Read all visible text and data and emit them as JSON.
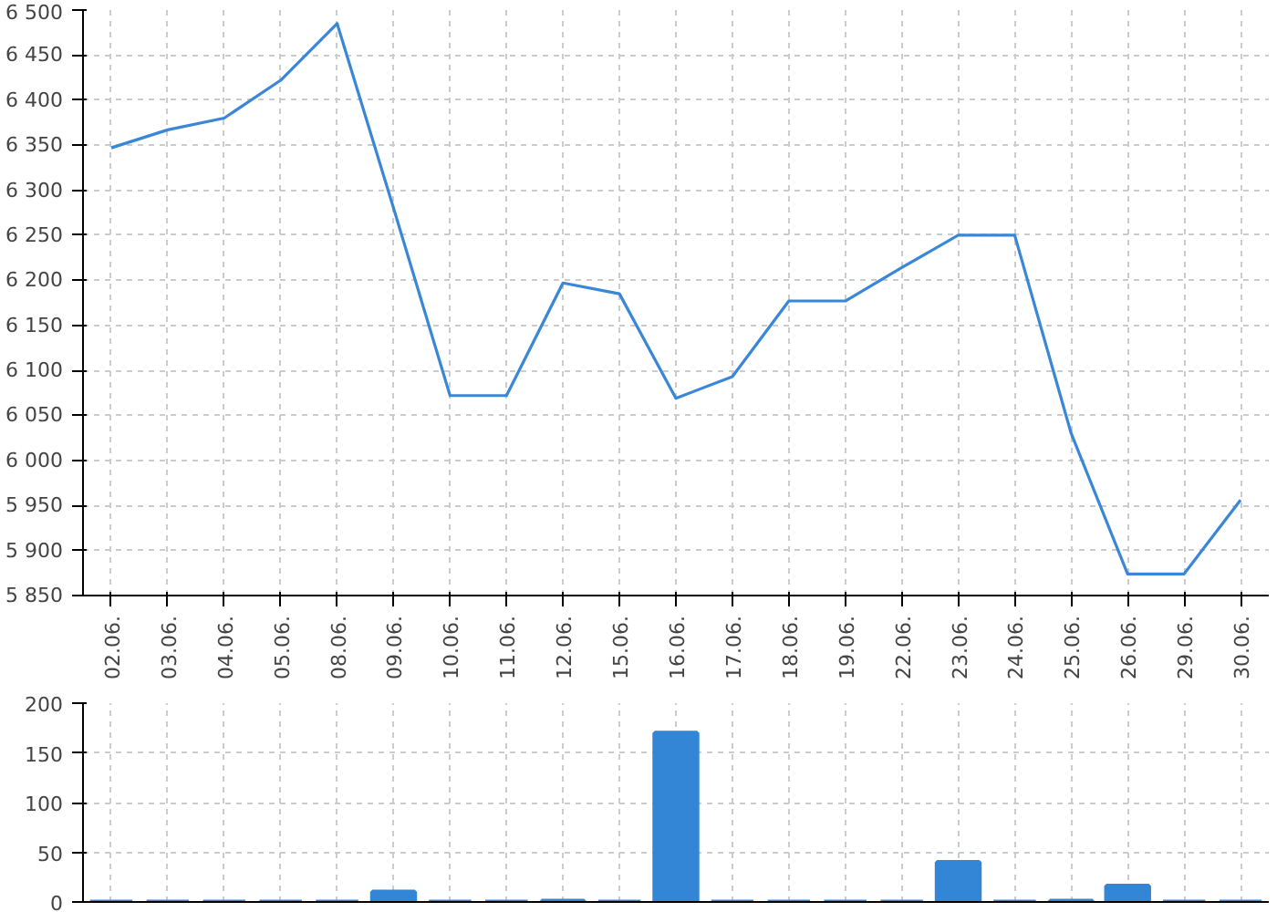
{
  "chart_data": [
    {
      "type": "line",
      "categories": [
        "02.06.",
        "03.06.",
        "04.06.",
        "05.06.",
        "08.06.",
        "09.06.",
        "10.06.",
        "11.06.",
        "12.06.",
        "15.06.",
        "16.06.",
        "17.06.",
        "18.06.",
        "19.06.",
        "22.06.",
        "23.06.",
        "24.06.",
        "25.06.",
        "26.06.",
        "29.06.",
        "30.06."
      ],
      "series": [
        {
          "color": "#3a87d8",
          "values": [
            6347,
            6367,
            6380,
            6422,
            6485,
            6280,
            6072,
            6072,
            6197,
            6185,
            6069,
            6093,
            6177,
            6177,
            6214,
            6250,
            6250,
            6030,
            5874,
            5874,
            5956
          ]
        }
      ],
      "ylim": [
        5850,
        6500
      ],
      "yticks": [
        {
          "value": 5850,
          "label": "5 850"
        },
        {
          "value": 5900,
          "label": "5 900"
        },
        {
          "value": 5950,
          "label": "5 950"
        },
        {
          "value": 6000,
          "label": "6 000"
        },
        {
          "value": 6050,
          "label": "6 050"
        },
        {
          "value": 6100,
          "label": "6 100"
        },
        {
          "value": 6150,
          "label": "6 150"
        },
        {
          "value": 6200,
          "label": "6 200"
        },
        {
          "value": 6250,
          "label": "6 250"
        },
        {
          "value": 6300,
          "label": "6 300"
        },
        {
          "value": 6350,
          "label": "6 350"
        },
        {
          "value": 6400,
          "label": "6 400"
        },
        {
          "value": 6450,
          "label": "6 450"
        },
        {
          "value": 6500,
          "label": "6 500"
        }
      ],
      "grid": true,
      "line_style": "solid"
    },
    {
      "type": "bar",
      "categories": [
        "02.06.",
        "03.06.",
        "04.06.",
        "05.06.",
        "08.06.",
        "09.06.",
        "10.06.",
        "11.06.",
        "12.06.",
        "15.06.",
        "16.06.",
        "17.06.",
        "18.06.",
        "19.06.",
        "22.06.",
        "23.06.",
        "24.06.",
        "25.06.",
        "26.06.",
        "29.06.",
        "30.06."
      ],
      "series": [
        {
          "color": "#3385d6",
          "values": [
            0,
            0,
            0,
            0,
            0,
            10,
            0,
            0,
            1,
            0,
            170,
            0,
            0,
            0,
            0,
            40,
            0,
            1,
            16,
            0,
            0
          ]
        }
      ],
      "ylim": [
        0,
        200
      ],
      "yticks": [
        0,
        50,
        100,
        150,
        200
      ],
      "grid": true,
      "tick_labels": "y"
    }
  ]
}
